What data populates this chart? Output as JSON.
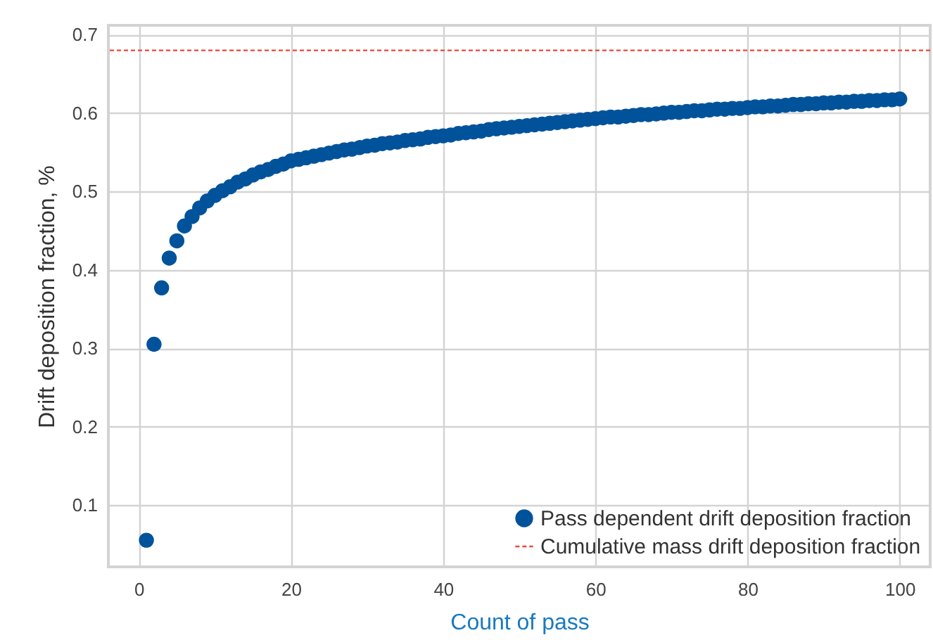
{
  "chart_data": {
    "type": "scatter",
    "xlabel": "Count of pass",
    "ylabel": "Drift deposition fraction, %",
    "x": [
      1,
      2,
      3,
      4,
      5,
      6,
      7,
      8,
      9,
      10,
      11,
      12,
      13,
      14,
      15,
      16,
      17,
      18,
      19,
      20,
      21,
      22,
      23,
      24,
      25,
      26,
      27,
      28,
      29,
      30,
      31,
      32,
      33,
      34,
      35,
      36,
      37,
      38,
      39,
      40,
      41,
      42,
      43,
      44,
      45,
      46,
      47,
      48,
      49,
      50,
      51,
      52,
      53,
      54,
      55,
      56,
      57,
      58,
      59,
      60,
      61,
      62,
      63,
      64,
      65,
      66,
      67,
      68,
      69,
      70,
      71,
      72,
      73,
      74,
      75,
      76,
      77,
      78,
      79,
      80,
      81,
      82,
      83,
      84,
      85,
      86,
      87,
      88,
      89,
      90,
      91,
      92,
      93,
      94,
      95,
      96,
      97,
      98,
      99,
      100
    ],
    "series": [
      {
        "name": "Pass dependent drift deposition fraction",
        "color": "#00539b",
        "values": [
          0.055,
          0.305,
          0.377,
          0.415,
          0.437,
          0.456,
          0.468,
          0.479,
          0.488,
          0.495,
          0.501,
          0.506,
          0.512,
          0.516,
          0.521,
          0.525,
          0.528,
          0.532,
          0.535,
          0.539,
          0.541,
          0.543,
          0.545,
          0.547,
          0.549,
          0.551,
          0.553,
          0.554,
          0.556,
          0.558,
          0.559,
          0.561,
          0.562,
          0.563,
          0.565,
          0.566,
          0.567,
          0.569,
          0.57,
          0.571,
          0.572,
          0.574,
          0.575,
          0.576,
          0.577,
          0.579,
          0.58,
          0.581,
          0.582,
          0.583,
          0.584,
          0.585,
          0.586,
          0.587,
          0.588,
          0.589,
          0.59,
          0.591,
          0.592,
          0.593,
          0.594,
          0.595,
          0.595,
          0.596,
          0.597,
          0.598,
          0.598,
          0.599,
          0.6,
          0.601,
          0.601,
          0.602,
          0.603,
          0.603,
          0.604,
          0.605,
          0.605,
          0.606,
          0.606,
          0.607,
          0.608,
          0.608,
          0.609,
          0.609,
          0.61,
          0.611,
          0.611,
          0.612,
          0.612,
          0.613,
          0.613,
          0.614,
          0.614,
          0.615,
          0.615,
          0.616,
          0.616,
          0.617,
          0.617,
          0.618
        ]
      }
    ],
    "ref_lines": [
      {
        "axis": "y",
        "value": 0.68,
        "label": "Cumulative mass drift deposition fraction",
        "color": "#e8483c",
        "line_style": "dashed"
      }
    ],
    "xlim": [
      -4,
      104
    ],
    "ylim": [
      0.021,
      0.712
    ],
    "xticks": [
      0,
      20,
      40,
      60,
      80,
      100
    ],
    "yticks": [
      0.1,
      0.2,
      0.3,
      0.4,
      0.5,
      0.6,
      0.7
    ],
    "grid": true,
    "legend": "bottom right",
    "marker": "circle"
  }
}
